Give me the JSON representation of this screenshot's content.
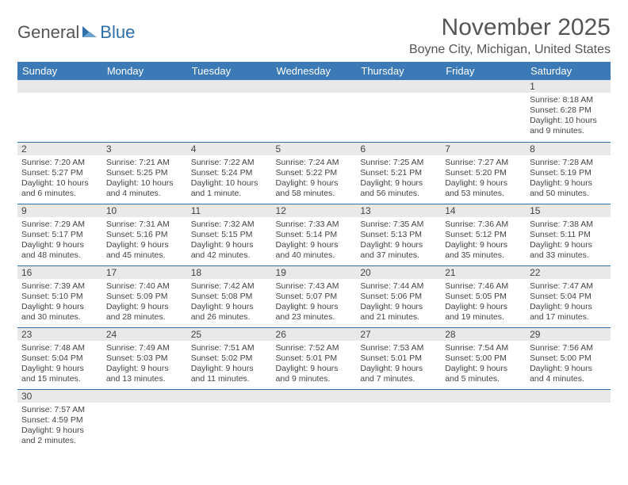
{
  "logo": {
    "word1": "General",
    "word2": "Blue",
    "sail_color": "#2f6fa8"
  },
  "title": "November 2025",
  "location": "Boyne City, Michigan, United States",
  "header_bg": "#3b79b7",
  "header_fg": "#ffffff",
  "daynum_bg": "#e9e9e9",
  "row_border": "#2f6fa8",
  "text_color": "#444444",
  "cell_fontsize": 10.5,
  "weekdays": [
    "Sunday",
    "Monday",
    "Tuesday",
    "Wednesday",
    "Thursday",
    "Friday",
    "Saturday"
  ],
  "weeks": [
    [
      {
        "n": "",
        "lines": []
      },
      {
        "n": "",
        "lines": []
      },
      {
        "n": "",
        "lines": []
      },
      {
        "n": "",
        "lines": []
      },
      {
        "n": "",
        "lines": []
      },
      {
        "n": "",
        "lines": []
      },
      {
        "n": "1",
        "lines": [
          "Sunrise: 8:18 AM",
          "Sunset: 6:28 PM",
          "Daylight: 10 hours and 9 minutes."
        ]
      }
    ],
    [
      {
        "n": "2",
        "lines": [
          "Sunrise: 7:20 AM",
          "Sunset: 5:27 PM",
          "Daylight: 10 hours and 6 minutes."
        ]
      },
      {
        "n": "3",
        "lines": [
          "Sunrise: 7:21 AM",
          "Sunset: 5:25 PM",
          "Daylight: 10 hours and 4 minutes."
        ]
      },
      {
        "n": "4",
        "lines": [
          "Sunrise: 7:22 AM",
          "Sunset: 5:24 PM",
          "Daylight: 10 hours and 1 minute."
        ]
      },
      {
        "n": "5",
        "lines": [
          "Sunrise: 7:24 AM",
          "Sunset: 5:22 PM",
          "Daylight: 9 hours and 58 minutes."
        ]
      },
      {
        "n": "6",
        "lines": [
          "Sunrise: 7:25 AM",
          "Sunset: 5:21 PM",
          "Daylight: 9 hours and 56 minutes."
        ]
      },
      {
        "n": "7",
        "lines": [
          "Sunrise: 7:27 AM",
          "Sunset: 5:20 PM",
          "Daylight: 9 hours and 53 minutes."
        ]
      },
      {
        "n": "8",
        "lines": [
          "Sunrise: 7:28 AM",
          "Sunset: 5:19 PM",
          "Daylight: 9 hours and 50 minutes."
        ]
      }
    ],
    [
      {
        "n": "9",
        "lines": [
          "Sunrise: 7:29 AM",
          "Sunset: 5:17 PM",
          "Daylight: 9 hours and 48 minutes."
        ]
      },
      {
        "n": "10",
        "lines": [
          "Sunrise: 7:31 AM",
          "Sunset: 5:16 PM",
          "Daylight: 9 hours and 45 minutes."
        ]
      },
      {
        "n": "11",
        "lines": [
          "Sunrise: 7:32 AM",
          "Sunset: 5:15 PM",
          "Daylight: 9 hours and 42 minutes."
        ]
      },
      {
        "n": "12",
        "lines": [
          "Sunrise: 7:33 AM",
          "Sunset: 5:14 PM",
          "Daylight: 9 hours and 40 minutes."
        ]
      },
      {
        "n": "13",
        "lines": [
          "Sunrise: 7:35 AM",
          "Sunset: 5:13 PM",
          "Daylight: 9 hours and 37 minutes."
        ]
      },
      {
        "n": "14",
        "lines": [
          "Sunrise: 7:36 AM",
          "Sunset: 5:12 PM",
          "Daylight: 9 hours and 35 minutes."
        ]
      },
      {
        "n": "15",
        "lines": [
          "Sunrise: 7:38 AM",
          "Sunset: 5:11 PM",
          "Daylight: 9 hours and 33 minutes."
        ]
      }
    ],
    [
      {
        "n": "16",
        "lines": [
          "Sunrise: 7:39 AM",
          "Sunset: 5:10 PM",
          "Daylight: 9 hours and 30 minutes."
        ]
      },
      {
        "n": "17",
        "lines": [
          "Sunrise: 7:40 AM",
          "Sunset: 5:09 PM",
          "Daylight: 9 hours and 28 minutes."
        ]
      },
      {
        "n": "18",
        "lines": [
          "Sunrise: 7:42 AM",
          "Sunset: 5:08 PM",
          "Daylight: 9 hours and 26 minutes."
        ]
      },
      {
        "n": "19",
        "lines": [
          "Sunrise: 7:43 AM",
          "Sunset: 5:07 PM",
          "Daylight: 9 hours and 23 minutes."
        ]
      },
      {
        "n": "20",
        "lines": [
          "Sunrise: 7:44 AM",
          "Sunset: 5:06 PM",
          "Daylight: 9 hours and 21 minutes."
        ]
      },
      {
        "n": "21",
        "lines": [
          "Sunrise: 7:46 AM",
          "Sunset: 5:05 PM",
          "Daylight: 9 hours and 19 minutes."
        ]
      },
      {
        "n": "22",
        "lines": [
          "Sunrise: 7:47 AM",
          "Sunset: 5:04 PM",
          "Daylight: 9 hours and 17 minutes."
        ]
      }
    ],
    [
      {
        "n": "23",
        "lines": [
          "Sunrise: 7:48 AM",
          "Sunset: 5:04 PM",
          "Daylight: 9 hours and 15 minutes."
        ]
      },
      {
        "n": "24",
        "lines": [
          "Sunrise: 7:49 AM",
          "Sunset: 5:03 PM",
          "Daylight: 9 hours and 13 minutes."
        ]
      },
      {
        "n": "25",
        "lines": [
          "Sunrise: 7:51 AM",
          "Sunset: 5:02 PM",
          "Daylight: 9 hours and 11 minutes."
        ]
      },
      {
        "n": "26",
        "lines": [
          "Sunrise: 7:52 AM",
          "Sunset: 5:01 PM",
          "Daylight: 9 hours and 9 minutes."
        ]
      },
      {
        "n": "27",
        "lines": [
          "Sunrise: 7:53 AM",
          "Sunset: 5:01 PM",
          "Daylight: 9 hours and 7 minutes."
        ]
      },
      {
        "n": "28",
        "lines": [
          "Sunrise: 7:54 AM",
          "Sunset: 5:00 PM",
          "Daylight: 9 hours and 5 minutes."
        ]
      },
      {
        "n": "29",
        "lines": [
          "Sunrise: 7:56 AM",
          "Sunset: 5:00 PM",
          "Daylight: 9 hours and 4 minutes."
        ]
      }
    ],
    [
      {
        "n": "30",
        "lines": [
          "Sunrise: 7:57 AM",
          "Sunset: 4:59 PM",
          "Daylight: 9 hours and 2 minutes."
        ]
      },
      {
        "n": "",
        "lines": []
      },
      {
        "n": "",
        "lines": []
      },
      {
        "n": "",
        "lines": []
      },
      {
        "n": "",
        "lines": []
      },
      {
        "n": "",
        "lines": []
      },
      {
        "n": "",
        "lines": []
      }
    ]
  ]
}
